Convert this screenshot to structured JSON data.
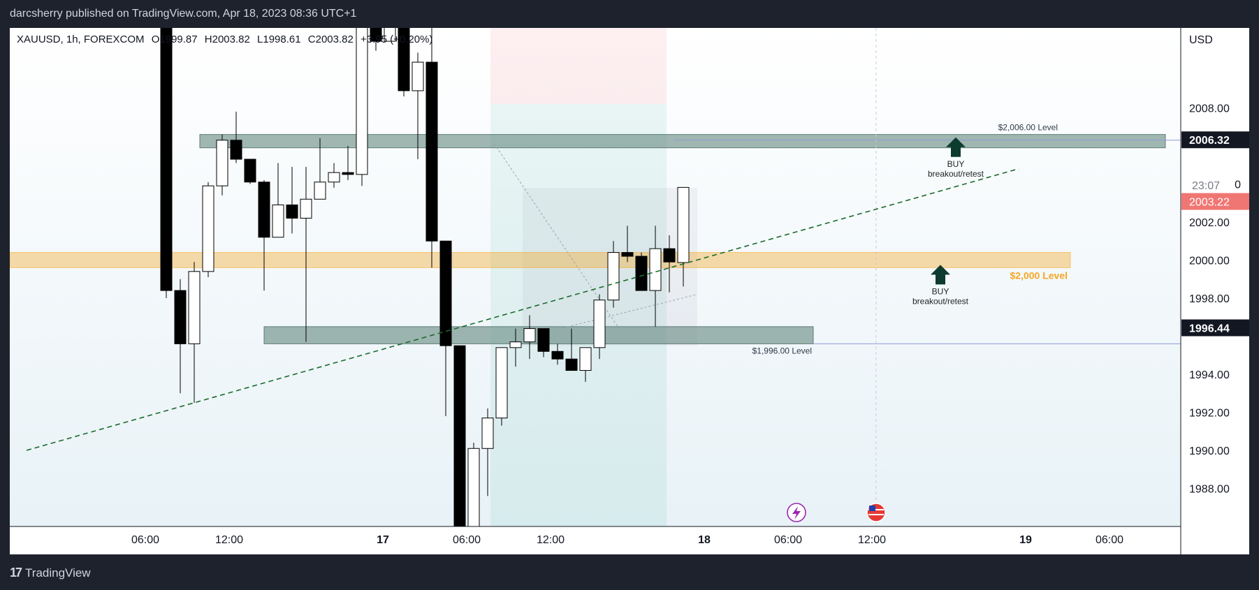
{
  "header": {
    "published": "darcsherry published on TradingView.com, Apr 18, 2023 08:36 UTC+1"
  },
  "legend": {
    "symbol": "XAUUSD, 1h, FOREXCOM",
    "open": "O1999.87",
    "high": "H2003.82",
    "low": "L1998.61",
    "close": "C2003.82",
    "change": "+3.95 (+0.20%)"
  },
  "footer": {
    "brand": "TradingView"
  },
  "colors": {
    "accent_orange": "#f5a623",
    "zone": "#7d9c94",
    "price_red": "#f07673",
    "arrow": "#0d3b2e",
    "trend": "#1b6b2a"
  },
  "chart_data": {
    "type": "candlestick",
    "currency_label": "USD",
    "ylim": [
      1986.0,
      2012.2
    ],
    "y_ticks": [
      "2008.00",
      "2006.32",
      "2002.00",
      "2000.00",
      "1998.00",
      "1994.00",
      "1992.00",
      "1990.00",
      "1988.00"
    ],
    "x_ticks": [
      {
        "label": "06:00",
        "index": -1.5,
        "bold": false
      },
      {
        "label": "12:00",
        "index": 4.5,
        "bold": false
      },
      {
        "label": "17",
        "index": 15.5,
        "bold": true
      },
      {
        "label": "06:00",
        "index": 21.5,
        "bold": false
      },
      {
        "label": "12:00",
        "index": 27.5,
        "bold": false
      },
      {
        "label": "18",
        "index": 38.5,
        "bold": true
      },
      {
        "label": "06:00",
        "index": 44.5,
        "bold": false
      },
      {
        "label": "12:00",
        "index": 50.5,
        "bold": false
      },
      {
        "label": "19",
        "index": 61.5,
        "bold": true
      },
      {
        "label": "06:00",
        "index": 67.5,
        "bold": false
      }
    ],
    "candles": [
      [
        2014.0,
        2014.0,
        1998.0,
        1998.4
      ],
      [
        1998.4,
        1999.0,
        1993.0,
        1995.6
      ],
      [
        1995.6,
        1999.9,
        1992.5,
        1999.4
      ],
      [
        1999.4,
        2004.1,
        1999.1,
        2003.9
      ],
      [
        2003.9,
        2006.6,
        2003.4,
        2006.3
      ],
      [
        2006.3,
        2007.8,
        2005.1,
        2005.3
      ],
      [
        2005.3,
        2005.3,
        2004.0,
        2004.1
      ],
      [
        2004.1,
        2004.2,
        1998.4,
        2001.2
      ],
      [
        2001.2,
        2005.1,
        2001.2,
        2002.9
      ],
      [
        2002.9,
        2004.9,
        2001.4,
        2002.2
      ],
      [
        2002.2,
        2004.9,
        1995.7,
        2003.2
      ],
      [
        2003.2,
        2006.4,
        2003.2,
        2004.1
      ],
      [
        2004.1,
        2005.1,
        2003.8,
        2004.6
      ],
      [
        2004.6,
        2006.0,
        2004.2,
        2004.5
      ],
      [
        2004.5,
        2013.0,
        2003.9,
        2013.0
      ],
      [
        2013.0,
        2013.0,
        2011.0,
        2011.5
      ],
      [
        2011.5,
        2013.0,
        2011.5,
        2013.0
      ],
      [
        2013.0,
        2013.0,
        2008.6,
        2008.9
      ],
      [
        2008.9,
        2010.9,
        2005.3,
        2010.4
      ],
      [
        2010.4,
        2012.5,
        1999.6,
        2001.0
      ],
      [
        2001.0,
        2001.0,
        1991.8,
        1995.5
      ],
      [
        1995.5,
        1995.5,
        1983.0,
        1983.0
      ],
      [
        1983.0,
        1990.4,
        1983.0,
        1990.1
      ],
      [
        1990.1,
        1992.2,
        1987.6,
        1991.7
      ],
      [
        1991.7,
        1995.4,
        1991.3,
        1995.4
      ],
      [
        1995.4,
        1996.4,
        1994.4,
        1995.7
      ],
      [
        1995.7,
        1997.1,
        1994.8,
        1996.4
      ],
      [
        1996.4,
        1996.4,
        1994.9,
        1995.2
      ],
      [
        1995.2,
        1995.6,
        1994.5,
        1994.8
      ],
      [
        1994.8,
        1996.4,
        1994.2,
        1994.2
      ],
      [
        1994.2,
        1995.4,
        1993.6,
        1995.4
      ],
      [
        1995.4,
        1998.2,
        1994.8,
        1997.9
      ],
      [
        1997.9,
        2001.0,
        1997.5,
        2000.4
      ],
      [
        2000.4,
        2001.8,
        1999.9,
        2000.2
      ],
      [
        2000.2,
        2000.4,
        1998.4,
        1998.4
      ],
      [
        1998.4,
        2001.8,
        1996.5,
        2000.6
      ],
      [
        2000.6,
        2001.3,
        1998.3,
        1999.9
      ],
      [
        1999.87,
        2003.82,
        1998.61,
        2003.82
      ]
    ],
    "levels": [
      {
        "label": "$2,006.00 Level",
        "price": 2006.0
      },
      {
        "label": "$2,000 Level",
        "price": 2000.0
      },
      {
        "label": "$1,996.00 Level",
        "price": 1996.0
      }
    ],
    "annotations": [
      {
        "line1": "BUY",
        "line2": "breakout/retest",
        "price": 2006.32
      },
      {
        "line1": "BUY",
        "line2": "breakout/retest",
        "price": 1999.6
      }
    ],
    "price_labels": [
      {
        "text": "2006.32",
        "price": 2006.32,
        "style": "dark"
      },
      {
        "text": "23:07",
        "price": 2003.95,
        "style": "plain"
      },
      {
        "text": "0",
        "price": 2004.0,
        "style": "plain"
      },
      {
        "text": "2003.22",
        "price": 2003.08,
        "style": "red"
      },
      {
        "text": "1996.44",
        "price": 1996.44,
        "style": "dark"
      }
    ],
    "trendline": {
      "from": [
        -10.0,
        1990.0
      ],
      "to": [
        61.0,
        2004.8
      ]
    },
    "grid": false,
    "legend_position": "top-left"
  }
}
